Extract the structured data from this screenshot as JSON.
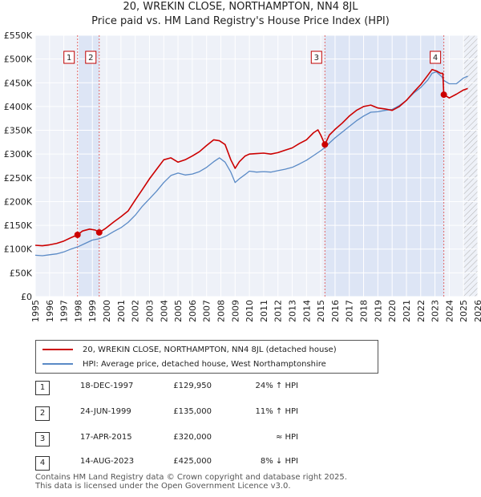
{
  "title_line1": "20, WREKIN CLOSE, NORTHAMPTON, NN4 8JL",
  "title_line2": "Price paid vs. HM Land Registry's House Price Index (HPI)",
  "chart_data": {
    "type": "line",
    "xlim": [
      1995,
      2026
    ],
    "ylim": [
      0,
      550000
    ],
    "y_ticks": [
      0,
      50000,
      100000,
      150000,
      200000,
      250000,
      300000,
      350000,
      400000,
      450000,
      500000,
      550000
    ],
    "y_tick_labels": [
      "£0",
      "£50K",
      "£100K",
      "£150K",
      "£200K",
      "£250K",
      "£300K",
      "£350K",
      "£400K",
      "£450K",
      "£500K",
      "£550K"
    ],
    "x_ticks": [
      1995,
      1996,
      1997,
      1998,
      1999,
      2000,
      2001,
      2002,
      2003,
      2004,
      2005,
      2006,
      2007,
      2008,
      2009,
      2010,
      2011,
      2012,
      2013,
      2014,
      2015,
      2016,
      2017,
      2018,
      2019,
      2020,
      2021,
      2022,
      2023,
      2024,
      2025,
      2026
    ],
    "x_tick_labels": [
      "1995",
      "1996",
      "1997",
      "1998",
      "1999",
      "2000",
      "2001",
      "2002",
      "2003",
      "2004",
      "2005",
      "2006",
      "2007",
      "2008",
      "2009",
      "2010",
      "2011",
      "2012",
      "2013",
      "2014",
      "2015",
      "2016",
      "2017",
      "2018",
      "2019",
      "2020",
      "2021",
      "2022",
      "2023",
      "2024",
      "2025",
      "2026"
    ],
    "grid": true,
    "future_hatch_from": 2025.0,
    "series": [
      {
        "name": "20, WREKIN CLOSE, NORTHAMPTON, NN4 8JL (detached house)",
        "color": "#cc0000",
        "x": [
          1995.0,
          1995.5,
          1996.0,
          1996.5,
          1997.0,
          1997.5,
          1997.96,
          1998.3,
          1998.8,
          1999.2,
          1999.48,
          1999.9,
          2000.5,
          2001.0,
          2001.5,
          2002.0,
          2002.5,
          2003.0,
          2003.5,
          2004.0,
          2004.5,
          2005.0,
          2005.5,
          2006.0,
          2006.5,
          2007.0,
          2007.5,
          2007.9,
          2008.3,
          2008.7,
          2009.0,
          2009.3,
          2009.7,
          2010.0,
          2010.5,
          2011.0,
          2011.5,
          2012.0,
          2012.5,
          2013.0,
          2013.5,
          2014.0,
          2014.5,
          2014.8,
          2015.0,
          2015.29,
          2015.6,
          2016.0,
          2016.5,
          2017.0,
          2017.5,
          2018.0,
          2018.5,
          2019.0,
          2019.5,
          2020.0,
          2020.5,
          2021.0,
          2021.5,
          2022.0,
          2022.5,
          2022.8,
          2023.1,
          2023.4,
          2023.55,
          2023.62,
          2024.0,
          2024.5,
          2025.0,
          2025.3
        ],
        "values": [
          108000,
          107000,
          109000,
          112000,
          117000,
          124000,
          129950,
          138000,
          142000,
          140000,
          135000,
          143000,
          157000,
          168000,
          180000,
          203000,
          225000,
          248000,
          268000,
          288000,
          292000,
          283000,
          288000,
          296000,
          305000,
          318000,
          330000,
          328000,
          320000,
          288000,
          270000,
          284000,
          296000,
          300000,
          301000,
          302000,
          300000,
          303000,
          308000,
          313000,
          322000,
          330000,
          345000,
          351000,
          340000,
          320000,
          340000,
          352000,
          365000,
          380000,
          392000,
          400000,
          403000,
          397000,
          395000,
          392000,
          400000,
          413000,
          430000,
          446000,
          466000,
          478000,
          475000,
          470000,
          470000,
          425000,
          418000,
          426000,
          435000,
          438000
        ]
      },
      {
        "name": "HPI: Average price, detached house, West Northamptonshire",
        "color": "#5a8ac6",
        "x": [
          1995.0,
          1995.5,
          1996.0,
          1996.5,
          1997.0,
          1997.5,
          1998.0,
          1998.5,
          1999.0,
          1999.5,
          2000.0,
          2000.5,
          2001.0,
          2001.5,
          2002.0,
          2002.5,
          2003.0,
          2003.5,
          2004.0,
          2004.5,
          2005.0,
          2005.5,
          2006.0,
          2006.5,
          2007.0,
          2007.5,
          2007.9,
          2008.3,
          2008.7,
          2009.0,
          2009.3,
          2009.7,
          2010.0,
          2010.5,
          2011.0,
          2011.5,
          2012.0,
          2012.5,
          2013.0,
          2013.5,
          2014.0,
          2014.5,
          2015.0,
          2015.3,
          2015.6,
          2016.0,
          2016.5,
          2017.0,
          2017.5,
          2018.0,
          2018.5,
          2019.0,
          2019.5,
          2020.0,
          2020.5,
          2021.0,
          2021.5,
          2022.0,
          2022.5,
          2022.8,
          2023.1,
          2023.5,
          2023.62,
          2024.0,
          2024.5,
          2025.0,
          2025.3
        ],
        "values": [
          87000,
          86000,
          88000,
          90000,
          94000,
          100000,
          105000,
          112000,
          119000,
          122000,
          128000,
          137000,
          145000,
          156000,
          171000,
          190000,
          206000,
          222000,
          240000,
          255000,
          260000,
          256000,
          258000,
          263000,
          272000,
          284000,
          292000,
          283000,
          262000,
          240000,
          248000,
          257000,
          264000,
          262000,
          263000,
          262000,
          265000,
          268000,
          272000,
          279000,
          287000,
          297000,
          307000,
          314000,
          323000,
          334000,
          346000,
          358000,
          370000,
          380000,
          388000,
          389000,
          392000,
          394000,
          402000,
          413000,
          428000,
          440000,
          456000,
          470000,
          473000,
          462000,
          455000,
          448000,
          448000,
          460000,
          464000
        ]
      }
    ],
    "sale_markers": [
      {
        "label": "1",
        "x": 1997.96,
        "value": 129950
      },
      {
        "label": "2",
        "x": 1999.48,
        "value": 135000
      },
      {
        "label": "3",
        "x": 2015.29,
        "value": 320000
      },
      {
        "label": "4",
        "x": 2023.62,
        "value": 425000
      }
    ]
  },
  "legend": {
    "property_label": "20, WREKIN CLOSE, NORTHAMPTON, NN4 8JL (detached house)",
    "hpi_label": "HPI: Average price, detached house, West Northamptonshire",
    "property_color": "#cc0000",
    "hpi_color": "#5a8ac6"
  },
  "sales": [
    {
      "num": "1",
      "date": "18-DEC-1997",
      "price": "£129,950",
      "hpi": "24% ↑ HPI"
    },
    {
      "num": "2",
      "date": "24-JUN-1999",
      "price": "£135,000",
      "hpi": "11% ↑ HPI"
    },
    {
      "num": "3",
      "date": "17-APR-2015",
      "price": "£320,000",
      "hpi": "≈ HPI"
    },
    {
      "num": "4",
      "date": "14-AUG-2023",
      "price": "£425,000",
      "hpi": "8% ↓ HPI"
    }
  ],
  "footer_line1": "Contains HM Land Registry data © Crown copyright and database right 2025.",
  "footer_line2": "This data is licensed under the Open Government Licence v3.0."
}
